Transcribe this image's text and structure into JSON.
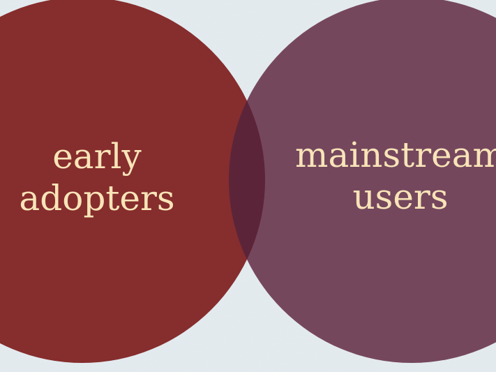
{
  "background_color": "#e6edf1",
  "sets": [
    {
      "id": "left",
      "lines": [
        "early",
        "adopters"
      ],
      "fill_color": "#7f1e1e",
      "text_color": "#f8e4b8"
    },
    {
      "id": "right",
      "lines": [
        "mainstream",
        "users"
      ],
      "fill_color": "#6d3a52",
      "text_color": "#f8e4b8"
    }
  ],
  "overlap_color": "#5c2438"
}
